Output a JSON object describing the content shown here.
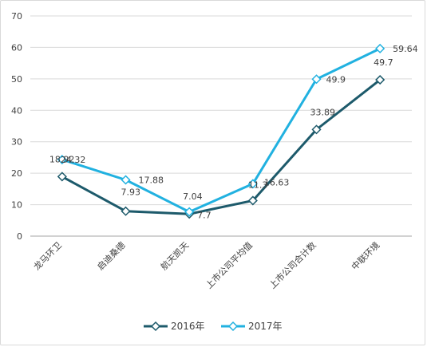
{
  "chart_data": {
    "type": "line",
    "categories": [
      "龙马环卫",
      "启迪桑德",
      "航天凯天",
      "上市公司平均值",
      "上市公司合计数",
      "中联环境"
    ],
    "ylim": [
      0,
      70
    ],
    "yticks": [
      0,
      10,
      20,
      30,
      40,
      50,
      60,
      70
    ],
    "grid": true,
    "legend_position": "bottom",
    "series": [
      {
        "name": "2016年",
        "color": "#1d5a6b",
        "values": [
          18.92,
          7.93,
          7.04,
          11.3,
          33.89,
          49.7
        ]
      },
      {
        "name": "2017年",
        "color": "#21b1e0",
        "values": [
          24.32,
          17.88,
          7.7,
          16.63,
          49.9,
          59.64
        ]
      }
    ]
  }
}
